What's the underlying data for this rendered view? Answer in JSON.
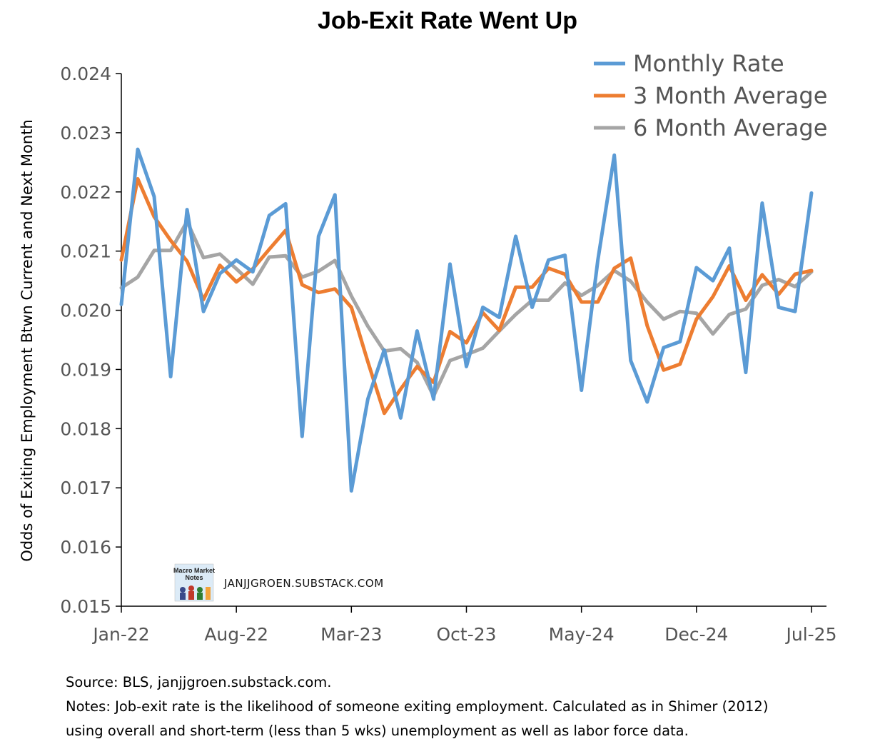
{
  "chart_data": {
    "type": "line",
    "title": "Job-Exit Rate Went Up",
    "xlabel": "",
    "ylabel": "Odds of Exiting Employment Btwn Current and Next Month",
    "ylim": [
      0.015,
      0.024
    ],
    "yticks": [
      "0.015",
      "0.016",
      "0.017",
      "0.018",
      "0.019",
      "0.020",
      "0.021",
      "0.022",
      "0.023",
      "0.024"
    ],
    "x": [
      "Jan-22",
      "Feb-22",
      "Mar-22",
      "Apr-22",
      "May-22",
      "Jun-22",
      "Jul-22",
      "Aug-22",
      "Sep-22",
      "Oct-22",
      "Nov-22",
      "Dec-22",
      "Jan-23",
      "Feb-23",
      "Mar-23",
      "Apr-23",
      "May-23",
      "Jun-23",
      "Jul-23",
      "Aug-23",
      "Sep-23",
      "Oct-23",
      "Nov-23",
      "Dec-23",
      "Jan-24",
      "Feb-24",
      "Mar-24",
      "Apr-24",
      "May-24",
      "Jun-24",
      "Jul-24",
      "Aug-24",
      "Sep-24",
      "Oct-24",
      "Nov-24",
      "Dec-24",
      "Jan-25",
      "Feb-25",
      "Mar-25",
      "Apr-25",
      "May-25",
      "Jun-25",
      "Jul-25"
    ],
    "xtick_labels": [
      "Jan-22",
      "Aug-22",
      "Mar-23",
      "Oct-23",
      "May-24",
      "Dec-24",
      "Jul-25"
    ],
    "series": [
      {
        "name": "Monthly Rate",
        "color": "#5b9bd5",
        "values": [
          0.0201,
          0.02272,
          0.02192,
          0.01888,
          0.0217,
          0.01998,
          0.02062,
          0.02085,
          0.02065,
          0.0216,
          0.0218,
          0.01787,
          0.02125,
          0.02195,
          0.01695,
          0.0185,
          0.01933,
          0.01818,
          0.01965,
          0.0185,
          0.02078,
          0.01905,
          0.02005,
          0.01988,
          0.02125,
          0.02005,
          0.02085,
          0.02093,
          0.01865,
          0.02085,
          0.02262,
          0.01915,
          0.01845,
          0.01937,
          0.01947,
          0.02072,
          0.0205,
          0.02105,
          0.01895,
          0.02181,
          0.02005,
          0.01998,
          0.02198
        ]
      },
      {
        "name": "3 Month Average",
        "color": "#ed7d31",
        "values": [
          0.02085,
          0.02222,
          0.02158,
          0.02118,
          0.02083,
          0.02018,
          0.02076,
          0.02048,
          0.0207,
          0.02103,
          0.02135,
          0.02043,
          0.0203,
          0.02036,
          0.02005,
          0.01913,
          0.01826,
          0.01867,
          0.01905,
          0.01878,
          0.01964,
          0.01945,
          0.01996,
          0.01966,
          0.02039,
          0.02039,
          0.02071,
          0.02061,
          0.02014,
          0.02014,
          0.02071,
          0.02088,
          0.01974,
          0.01899,
          0.01909,
          0.01985,
          0.02023,
          0.02075,
          0.02017,
          0.0206,
          0.02027,
          0.02061,
          0.02067
        ]
      },
      {
        "name": "6 Month Average",
        "color": "#a5a5a5",
        "values": [
          0.02038,
          0.02056,
          0.02101,
          0.02101,
          0.0215,
          0.02089,
          0.02095,
          0.0207,
          0.02044,
          0.0209,
          0.02092,
          0.02056,
          0.02066,
          0.02084,
          0.02024,
          0.01973,
          0.01931,
          0.01935,
          0.01912,
          0.01855,
          0.01915,
          0.01925,
          0.01936,
          0.01965,
          0.01993,
          0.02017,
          0.02017,
          0.02046,
          0.02025,
          0.02042,
          0.02067,
          0.02049,
          0.02014,
          0.01985,
          0.01998,
          0.01995,
          0.0196,
          0.01993,
          0.02002,
          0.02042,
          0.02052,
          0.0204,
          0.02065
        ]
      }
    ],
    "legend_position": "top-right",
    "grid": false,
    "watermark": "JANJJGROEN.SUBSTACK.COM",
    "logo_text": [
      "Macro Market",
      "Notes"
    ]
  },
  "footer": {
    "source": "Source: BLS, janjjgroen.substack.com.",
    "notes_line1": "Notes: Job-exit rate is the likelihood of someone exiting employment. Calculated as in Shimer (2012)",
    "notes_line2": "using overall and short-term (less than 5 wks) unemployment as well as labor force data."
  }
}
